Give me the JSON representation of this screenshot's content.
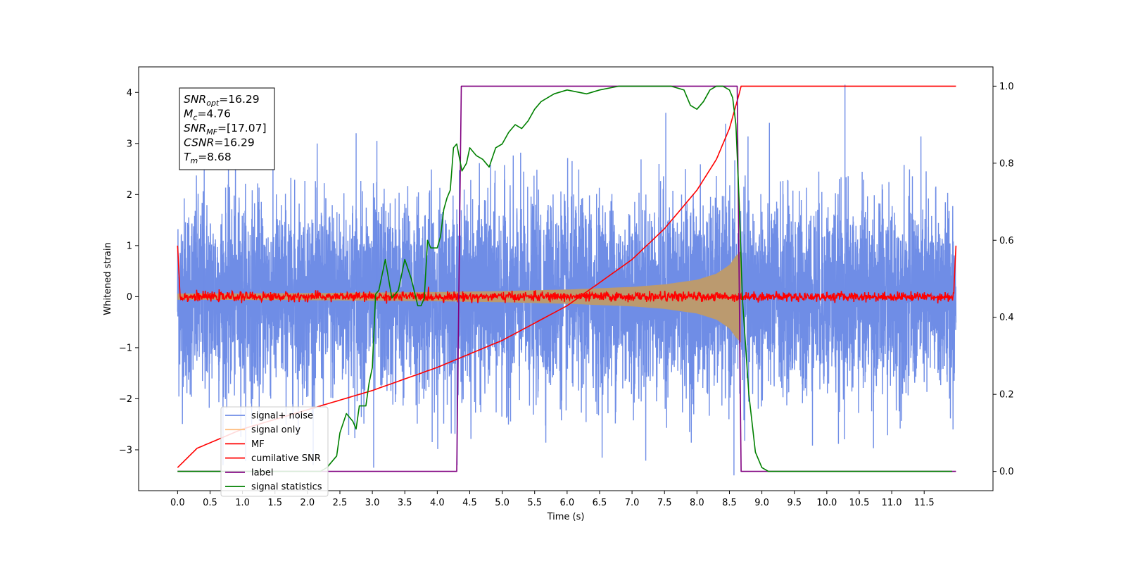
{
  "chart_data": {
    "type": "line",
    "title": "",
    "xlabel": "Time (s)",
    "ylabel": "Whitened strain",
    "y2label": "",
    "xlim": [
      -0.6,
      12.56
    ],
    "ylim": [
      -3.8,
      4.5
    ],
    "y2lim": [
      -0.05,
      1.05
    ],
    "grid": false,
    "legend_position": "lower-left",
    "x_ticks": [
      "0.0",
      "0.5",
      "1.0",
      "1.5",
      "2.0",
      "2.5",
      "3.0",
      "3.5",
      "4.0",
      "4.5",
      "5.0",
      "5.5",
      "6.0",
      "6.5",
      "7.0",
      "7.5",
      "8.0",
      "8.5",
      "9.0",
      "9.5",
      "10.0",
      "10.5",
      "11.0",
      "11.5"
    ],
    "y_ticks": [
      "−3",
      "−2",
      "−1",
      "0",
      "1",
      "2",
      "3",
      "4"
    ],
    "y2_ticks": [
      "0.0",
      "0.2",
      "0.4",
      "0.6",
      "0.8",
      "1.0"
    ],
    "info_box": {
      "lines": [
        {
          "base": "SNR",
          "sub": "opt",
          "value": "=16.29"
        },
        {
          "base": "M",
          "sub": "c",
          "value": "=4.76"
        },
        {
          "base": "SNR",
          "sub": "MF",
          "value": "=[17.07]"
        },
        {
          "base": "CSNR",
          "sub": "",
          "value": "=16.29"
        },
        {
          "base": "T",
          "sub": "m",
          "value": "=8.68"
        }
      ]
    },
    "series": [
      {
        "name": "signal+ noise",
        "color": "#6f8de6",
        "axis": "left",
        "description_values": {
          "x_start": 0.0,
          "x_end": 11.99,
          "typical_range": [
            -2.0,
            2.5
          ],
          "max": 4.15,
          "min": -3.5
        }
      },
      {
        "name": "signal only",
        "color": "#ffbf80",
        "axis": "left",
        "envelope": {
          "x": [
            0.0,
            2.0,
            4.0,
            5.0,
            6.0,
            7.0,
            7.5,
            8.0,
            8.3,
            8.5,
            8.6,
            8.68
          ],
          "amplitude": [
            0.06,
            0.07,
            0.09,
            0.11,
            0.14,
            0.19,
            0.24,
            0.33,
            0.45,
            0.62,
            0.8,
            0.9
          ]
        }
      },
      {
        "name": "MF",
        "color": "#ff0000",
        "axis": "left",
        "description_values": {
          "baseline": 0.0,
          "noise_amplitude": 0.08,
          "edge_spike": 1.0
        }
      },
      {
        "name": "cumilative SNR",
        "color": "#ff0000",
        "axis": "right",
        "x": [
          0.0,
          0.3,
          1.0,
          2.0,
          3.0,
          4.0,
          5.0,
          6.0,
          7.0,
          7.5,
          8.0,
          8.3,
          8.5,
          8.6,
          8.65,
          8.68,
          8.72,
          11.99
        ],
        "y": [
          0.01,
          0.06,
          0.11,
          0.16,
          0.21,
          0.27,
          0.34,
          0.43,
          0.55,
          0.63,
          0.73,
          0.81,
          0.89,
          0.95,
          0.98,
          1.0,
          1.0,
          1.0
        ]
      },
      {
        "name": "label",
        "color": "#800080",
        "axis": "right",
        "x": [
          0.0,
          4.3,
          4.37,
          8.62,
          8.68,
          11.99
        ],
        "y": [
          0.0,
          0.0,
          1.0,
          1.0,
          0.0,
          0.0
        ]
      },
      {
        "name": "signal statistics",
        "color": "#008000",
        "axis": "right",
        "x": [
          0.0,
          2.0,
          2.2,
          2.3,
          2.45,
          2.5,
          2.6,
          2.7,
          2.75,
          2.8,
          2.9,
          2.95,
          3.0,
          3.05,
          3.1,
          3.2,
          3.3,
          3.4,
          3.5,
          3.6,
          3.7,
          3.75,
          3.8,
          3.85,
          3.9,
          4.0,
          4.05,
          4.1,
          4.15,
          4.2,
          4.25,
          4.3,
          4.38,
          4.45,
          4.5,
          4.6,
          4.7,
          4.8,
          4.9,
          5.0,
          5.1,
          5.2,
          5.3,
          5.4,
          5.5,
          5.6,
          5.8,
          6.0,
          6.3,
          6.5,
          6.8,
          7.0,
          7.3,
          7.6,
          7.8,
          7.9,
          8.0,
          8.1,
          8.2,
          8.3,
          8.4,
          8.5,
          8.55,
          8.6,
          8.65,
          8.7,
          8.8,
          8.9,
          9.0,
          9.1,
          9.3,
          9.6,
          10.0,
          11.0,
          11.93
        ],
        "y": [
          0.0,
          0.0,
          0.0,
          0.01,
          0.04,
          0.1,
          0.15,
          0.13,
          0.11,
          0.17,
          0.17,
          0.23,
          0.27,
          0.46,
          0.47,
          0.55,
          0.45,
          0.47,
          0.55,
          0.5,
          0.43,
          0.43,
          0.45,
          0.6,
          0.58,
          0.58,
          0.61,
          0.68,
          0.71,
          0.73,
          0.84,
          0.85,
          0.78,
          0.8,
          0.84,
          0.82,
          0.81,
          0.79,
          0.84,
          0.85,
          0.88,
          0.9,
          0.89,
          0.91,
          0.94,
          0.96,
          0.98,
          0.99,
          0.98,
          0.99,
          1.0,
          1.0,
          1.0,
          1.0,
          0.99,
          0.95,
          0.94,
          0.96,
          0.99,
          1.0,
          1.0,
          0.99,
          0.97,
          0.9,
          0.7,
          0.45,
          0.2,
          0.05,
          0.01,
          0.0,
          0.0,
          0.0,
          0.0,
          0.0,
          0.0
        ]
      }
    ]
  }
}
